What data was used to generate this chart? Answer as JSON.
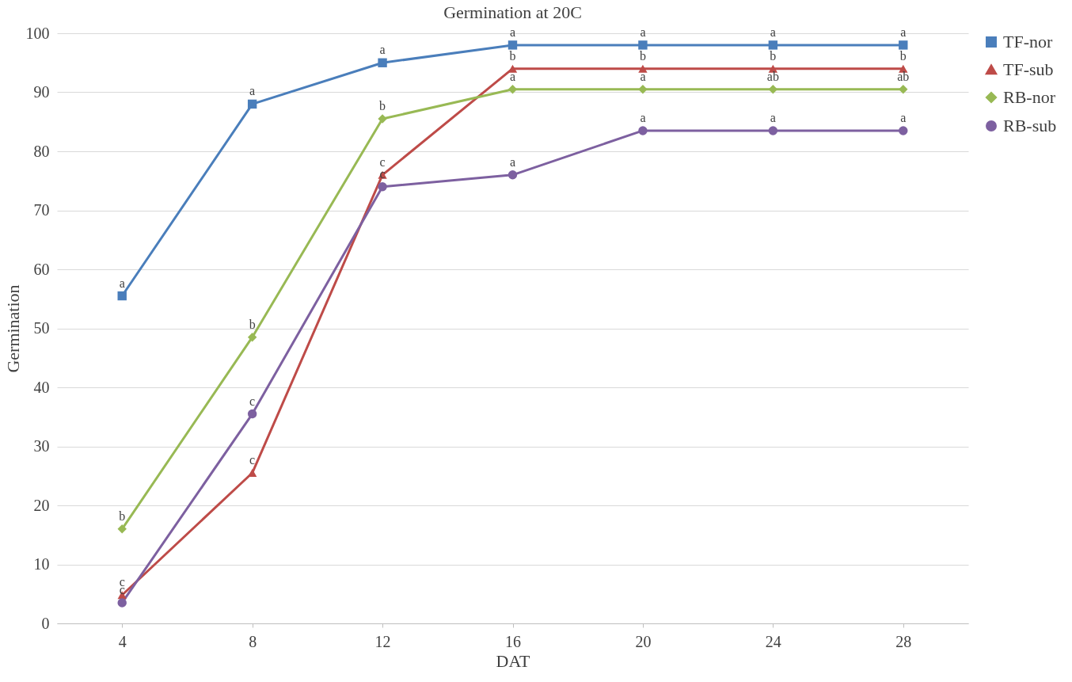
{
  "chart_data": {
    "type": "line",
    "title": "Germination at 20C",
    "xlabel": "DAT",
    "ylabel": "Germination",
    "categories": [
      "4",
      "8",
      "12",
      "16",
      "20",
      "24",
      "28"
    ],
    "series": [
      {
        "name": "TF-nor",
        "color": "#4a7ebb",
        "marker": "square",
        "values": [
          55.5,
          88,
          95,
          98,
          98,
          98,
          98
        ]
      },
      {
        "name": "TF-sub",
        "color": "#be4b48",
        "marker": "triangle",
        "values": [
          4.8,
          25.5,
          76,
          94,
          94,
          94,
          94
        ]
      },
      {
        "name": "RB-nor",
        "color": "#98b954",
        "marker": "diamond",
        "values": [
          16,
          48.5,
          85.5,
          90.5,
          90.5,
          90.5,
          90.5
        ]
      },
      {
        "name": "RB-sub",
        "color": "#7d60a0",
        "marker": "circle",
        "values": [
          3.5,
          35.5,
          74,
          76,
          83.5,
          83.5,
          83.5
        ]
      }
    ],
    "ylim": [
      0,
      100
    ],
    "yticks": [
      0,
      10,
      20,
      30,
      40,
      50,
      60,
      70,
      80,
      90,
      100
    ],
    "grid": "y",
    "legend": "right",
    "line_style": "solid",
    "annotations": [
      {
        "text": "a",
        "x": "4",
        "y": 55.5
      },
      {
        "text": "a",
        "x": "8",
        "y": 88
      },
      {
        "text": "a",
        "x": "12",
        "y": 95
      },
      {
        "text": "a",
        "x": "16",
        "y": 98
      },
      {
        "text": "a",
        "x": "20",
        "y": 98
      },
      {
        "text": "a",
        "x": "24",
        "y": 98
      },
      {
        "text": "a",
        "x": "28",
        "y": 98
      },
      {
        "text": "c",
        "x": "4",
        "y": 4.8
      },
      {
        "text": "c",
        "x": "8",
        "y": 25.5
      },
      {
        "text": "c",
        "x": "12",
        "y": 76
      },
      {
        "text": "b",
        "x": "16",
        "y": 94
      },
      {
        "text": "b",
        "x": "20",
        "y": 94
      },
      {
        "text": "b",
        "x": "24",
        "y": 94
      },
      {
        "text": "b",
        "x": "28",
        "y": 94
      },
      {
        "text": "b",
        "x": "4",
        "y": 16
      },
      {
        "text": "b",
        "x": "8",
        "y": 48.5
      },
      {
        "text": "b",
        "x": "12",
        "y": 85.5
      },
      {
        "text": "a",
        "x": "16",
        "y": 90.5
      },
      {
        "text": "a",
        "x": "20",
        "y": 90.5
      },
      {
        "text": "ab",
        "x": "24",
        "y": 90.5
      },
      {
        "text": "ab",
        "x": "28",
        "y": 90.5
      },
      {
        "text": "c",
        "x": "4",
        "y": 3.5
      },
      {
        "text": "c",
        "x": "8",
        "y": 35.5
      },
      {
        "text": "c",
        "x": "12",
        "y": 74
      },
      {
        "text": "a",
        "x": "16",
        "y": 76
      },
      {
        "text": "a",
        "x": "20",
        "y": 83.5
      },
      {
        "text": "a",
        "x": "24",
        "y": 83.5
      },
      {
        "text": "a",
        "x": "28",
        "y": 83.5
      }
    ]
  }
}
